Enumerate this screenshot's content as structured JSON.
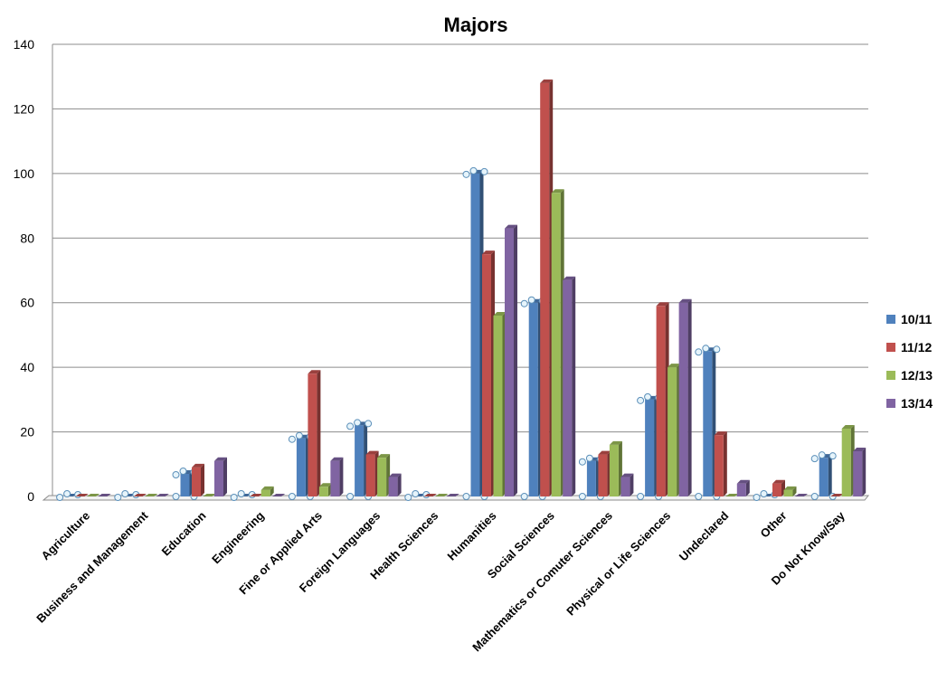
{
  "chart_data": {
    "type": "bar",
    "title": "Majors",
    "xlabel": "",
    "ylabel": "",
    "ylim": [
      0,
      140
    ],
    "yticks": [
      0,
      20,
      40,
      60,
      80,
      100,
      120,
      140
    ],
    "grid": true,
    "legend_position": "right",
    "categories": [
      "Agriculture",
      "Business and Management",
      "Education",
      "Engineering",
      "Fine or Applied Arts",
      "Foreign Languages",
      "Health Sciences",
      "Humanities",
      "Social Sciences",
      "Mathematics or  Comuter Sciences",
      "Physical or Life Sciences",
      "Undeclared",
      "Other",
      "Do Not Know/Say"
    ],
    "series": [
      {
        "name": "10/11",
        "color": "#4f81bd",
        "values": [
          0,
          0,
          7,
          0,
          18,
          22,
          0,
          100,
          60,
          11,
          30,
          45,
          0,
          12
        ]
      },
      {
        "name": "11/12",
        "color": "#c0504d",
        "values": [
          0,
          0,
          9,
          0,
          38,
          13,
          0,
          75,
          128,
          13,
          59,
          19,
          4,
          0
        ]
      },
      {
        "name": "12/13",
        "color": "#9bbb59",
        "values": [
          0,
          0,
          0,
          2,
          3,
          12,
          0,
          56,
          94,
          16,
          40,
          0,
          2,
          21
        ]
      },
      {
        "name": "13/14",
        "color": "#8064a2",
        "values": [
          0,
          0,
          11,
          0,
          11,
          6,
          0,
          83,
          67,
          6,
          60,
          4,
          0,
          14
        ]
      }
    ]
  }
}
